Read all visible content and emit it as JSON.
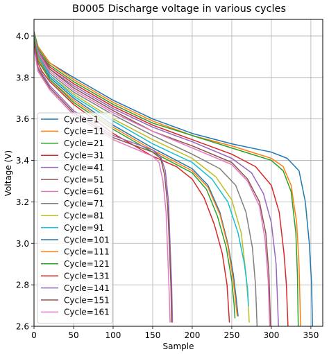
{
  "chart_data": {
    "type": "line",
    "title": "B0005 Discharge voltage in various cycles",
    "xlabel": "Sample",
    "ylabel": "Voltage (V)",
    "xlim": [
      0,
      365
    ],
    "ylim": [
      2.6,
      4.08
    ],
    "xticks": [
      "0",
      "50",
      "100",
      "150",
      "200",
      "250",
      "300",
      "350"
    ],
    "yticks": [
      "2.6",
      "2.8",
      "3.0",
      "3.2",
      "3.4",
      "3.6",
      "3.8",
      "4.0"
    ],
    "grid": true,
    "legend_position": "lower-left",
    "series": [
      {
        "name": "Cycle=1",
        "color": "#1f77b4",
        "points": [
          [
            0,
            4.02
          ],
          [
            5,
            3.95
          ],
          [
            20,
            3.87
          ],
          [
            50,
            3.8
          ],
          [
            100,
            3.69
          ],
          [
            150,
            3.6
          ],
          [
            200,
            3.53
          ],
          [
            250,
            3.48
          ],
          [
            300,
            3.44
          ],
          [
            320,
            3.41
          ],
          [
            335,
            3.35
          ],
          [
            343,
            3.2
          ],
          [
            348,
            3.0
          ],
          [
            351,
            2.8
          ],
          [
            352,
            2.6
          ]
        ]
      },
      {
        "name": "Cycle=11",
        "color": "#ff7f0e",
        "points": [
          [
            0,
            4.02
          ],
          [
            5,
            3.95
          ],
          [
            20,
            3.87
          ],
          [
            50,
            3.79
          ],
          [
            100,
            3.68
          ],
          [
            150,
            3.59
          ],
          [
            200,
            3.52
          ],
          [
            250,
            3.47
          ],
          [
            300,
            3.41
          ],
          [
            315,
            3.37
          ],
          [
            325,
            3.28
          ],
          [
            332,
            3.1
          ],
          [
            335,
            2.9
          ],
          [
            337,
            2.6
          ]
        ]
      },
      {
        "name": "Cycle=21",
        "color": "#2ca02c",
        "points": [
          [
            0,
            4.02
          ],
          [
            5,
            3.94
          ],
          [
            20,
            3.86
          ],
          [
            50,
            3.78
          ],
          [
            100,
            3.67
          ],
          [
            150,
            3.58
          ],
          [
            200,
            3.52
          ],
          [
            250,
            3.46
          ],
          [
            300,
            3.4
          ],
          [
            315,
            3.35
          ],
          [
            325,
            3.25
          ],
          [
            331,
            3.05
          ],
          [
            333,
            2.85
          ],
          [
            334,
            2.6
          ]
        ]
      },
      {
        "name": "Cycle=31",
        "color": "#d62728",
        "points": [
          [
            0,
            4.01
          ],
          [
            5,
            3.93
          ],
          [
            20,
            3.85
          ],
          [
            50,
            3.77
          ],
          [
            100,
            3.66
          ],
          [
            150,
            3.57
          ],
          [
            200,
            3.5
          ],
          [
            250,
            3.43
          ],
          [
            280,
            3.37
          ],
          [
            300,
            3.28
          ],
          [
            310,
            3.15
          ],
          [
            316,
            2.95
          ],
          [
            319,
            2.8
          ],
          [
            321,
            2.6
          ]
        ]
      },
      {
        "name": "Cycle=41",
        "color": "#9467bd",
        "points": [
          [
            0,
            4.01
          ],
          [
            5,
            3.93
          ],
          [
            20,
            3.84
          ],
          [
            50,
            3.76
          ],
          [
            100,
            3.65
          ],
          [
            150,
            3.56
          ],
          [
            200,
            3.49
          ],
          [
            250,
            3.41
          ],
          [
            275,
            3.34
          ],
          [
            290,
            3.24
          ],
          [
            300,
            3.1
          ],
          [
            306,
            2.9
          ],
          [
            309,
            2.6
          ]
        ]
      },
      {
        "name": "Cycle=51",
        "color": "#8c564b",
        "points": [
          [
            0,
            4.01
          ],
          [
            5,
            3.92
          ],
          [
            20,
            3.84
          ],
          [
            50,
            3.75
          ],
          [
            100,
            3.64
          ],
          [
            150,
            3.54
          ],
          [
            200,
            3.47
          ],
          [
            250,
            3.39
          ],
          [
            270,
            3.31
          ],
          [
            285,
            3.2
          ],
          [
            293,
            3.05
          ],
          [
            297,
            2.85
          ],
          [
            299,
            2.6
          ]
        ]
      },
      {
        "name": "Cycle=61",
        "color": "#e377c2",
        "points": [
          [
            0,
            4.01
          ],
          [
            5,
            3.92
          ],
          [
            20,
            3.83
          ],
          [
            50,
            3.74
          ],
          [
            100,
            3.63
          ],
          [
            150,
            3.54
          ],
          [
            200,
            3.46
          ],
          [
            250,
            3.38
          ],
          [
            270,
            3.3
          ],
          [
            285,
            3.18
          ],
          [
            292,
            3.02
          ],
          [
            296,
            2.82
          ],
          [
            298,
            2.6
          ]
        ]
      },
      {
        "name": "Cycle=71",
        "color": "#7f7f7f",
        "points": [
          [
            0,
            4.0
          ],
          [
            5,
            3.91
          ],
          [
            20,
            3.82
          ],
          [
            50,
            3.73
          ],
          [
            100,
            3.62
          ],
          [
            150,
            3.52
          ],
          [
            200,
            3.43
          ],
          [
            235,
            3.36
          ],
          [
            255,
            3.28
          ],
          [
            268,
            3.15
          ],
          [
            276,
            2.98
          ],
          [
            280,
            2.8
          ],
          [
            282,
            2.6
          ]
        ]
      },
      {
        "name": "Cycle=81",
        "color": "#bcbd22",
        "points": [
          [
            0,
            4.0
          ],
          [
            5,
            3.9
          ],
          [
            20,
            3.81
          ],
          [
            50,
            3.72
          ],
          [
            100,
            3.6
          ],
          [
            150,
            3.5
          ],
          [
            200,
            3.41
          ],
          [
            230,
            3.32
          ],
          [
            250,
            3.21
          ],
          [
            262,
            3.05
          ],
          [
            268,
            2.85
          ],
          [
            271,
            2.7
          ],
          [
            272,
            2.62
          ]
        ]
      },
      {
        "name": "Cycle=91",
        "color": "#17becf",
        "points": [
          [
            0,
            4.0
          ],
          [
            5,
            3.9
          ],
          [
            20,
            3.81
          ],
          [
            50,
            3.71
          ],
          [
            100,
            3.59
          ],
          [
            150,
            3.48
          ],
          [
            200,
            3.39
          ],
          [
            225,
            3.31
          ],
          [
            245,
            3.2
          ],
          [
            258,
            3.05
          ],
          [
            266,
            2.9
          ],
          [
            270,
            2.78
          ],
          [
            271,
            2.7
          ]
        ]
      },
      {
        "name": "Cycle=101",
        "color": "#1f77b4",
        "points": [
          [
            0,
            3.99
          ],
          [
            5,
            3.89
          ],
          [
            20,
            3.8
          ],
          [
            50,
            3.7
          ],
          [
            100,
            3.57
          ],
          [
            150,
            3.46
          ],
          [
            200,
            3.36
          ],
          [
            220,
            3.28
          ],
          [
            235,
            3.15
          ],
          [
            245,
            3.0
          ],
          [
            252,
            2.85
          ],
          [
            256,
            2.72
          ],
          [
            258,
            2.65
          ]
        ]
      },
      {
        "name": "Cycle=111",
        "color": "#ff7f0e",
        "points": [
          [
            0,
            3.99
          ],
          [
            5,
            3.89
          ],
          [
            20,
            3.79
          ],
          [
            50,
            3.69
          ],
          [
            100,
            3.56
          ],
          [
            150,
            3.45
          ],
          [
            200,
            3.35
          ],
          [
            220,
            3.27
          ],
          [
            235,
            3.14
          ],
          [
            245,
            2.99
          ],
          [
            252,
            2.82
          ],
          [
            256,
            2.68
          ],
          [
            257,
            2.65
          ]
        ]
      },
      {
        "name": "Cycle=121",
        "color": "#2ca02c",
        "points": [
          [
            0,
            3.99
          ],
          [
            5,
            3.88
          ],
          [
            20,
            3.79
          ],
          [
            50,
            3.68
          ],
          [
            100,
            3.55
          ],
          [
            150,
            3.44
          ],
          [
            200,
            3.34
          ],
          [
            218,
            3.26
          ],
          [
            232,
            3.13
          ],
          [
            243,
            2.98
          ],
          [
            250,
            2.82
          ],
          [
            253,
            2.7
          ],
          [
            254,
            2.64
          ]
        ]
      },
      {
        "name": "Cycle=131",
        "color": "#d62728",
        "points": [
          [
            0,
            3.97
          ],
          [
            5,
            3.87
          ],
          [
            10,
            3.83
          ],
          [
            20,
            3.78
          ],
          [
            50,
            3.67
          ],
          [
            100,
            3.53
          ],
          [
            150,
            3.42
          ],
          [
            180,
            3.37
          ],
          [
            200,
            3.31
          ],
          [
            215,
            3.22
          ],
          [
            228,
            3.09
          ],
          [
            238,
            2.95
          ],
          [
            244,
            2.8
          ],
          [
            247,
            2.62
          ]
        ]
      },
      {
        "name": "Cycle=141",
        "color": "#9467bd",
        "points": [
          [
            0,
            3.96
          ],
          [
            5,
            3.85
          ],
          [
            20,
            3.76
          ],
          [
            50,
            3.64
          ],
          [
            100,
            3.52
          ],
          [
            150,
            3.45
          ],
          [
            160,
            3.42
          ],
          [
            166,
            3.35
          ],
          [
            170,
            3.2
          ],
          [
            172,
            3.0
          ],
          [
            174,
            2.8
          ],
          [
            175,
            2.62
          ]
        ]
      },
      {
        "name": "Cycle=151",
        "color": "#8c564b",
        "points": [
          [
            0,
            3.95
          ],
          [
            5,
            3.84
          ],
          [
            20,
            3.75
          ],
          [
            50,
            3.63
          ],
          [
            100,
            3.51
          ],
          [
            150,
            3.44
          ],
          [
            160,
            3.41
          ],
          [
            165,
            3.33
          ],
          [
            169,
            3.18
          ],
          [
            171,
            3.0
          ],
          [
            173,
            2.8
          ],
          [
            174,
            2.62
          ]
        ]
      },
      {
        "name": "Cycle=161",
        "color": "#e377c2",
        "points": [
          [
            0,
            3.94
          ],
          [
            5,
            3.83
          ],
          [
            20,
            3.74
          ],
          [
            50,
            3.62
          ],
          [
            100,
            3.5
          ],
          [
            150,
            3.42
          ],
          [
            158,
            3.39
          ],
          [
            163,
            3.3
          ],
          [
            167,
            3.15
          ],
          [
            169,
            2.95
          ],
          [
            171,
            2.75
          ],
          [
            172,
            2.62
          ]
        ]
      }
    ]
  }
}
